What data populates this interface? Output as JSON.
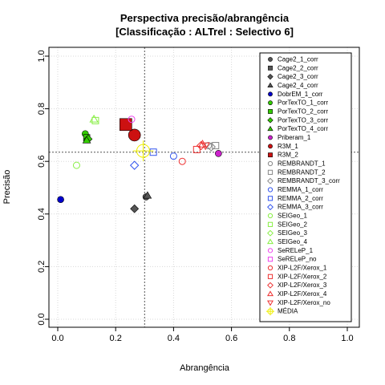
{
  "chart_data": {
    "type": "scatter",
    "title": [
      "Perspectiva precisão/abrangência",
      "[Classificação : ALTrel : Selectivo 6]"
    ],
    "xlabel": "Abrangência",
    "ylabel": "Precisão",
    "xlim": [
      0,
      1
    ],
    "ylim": [
      0,
      1
    ],
    "xticks": [
      "0.0",
      "0.2",
      "0.4",
      "0.6",
      "0.8",
      "1.0"
    ],
    "yticks": [
      "0.0",
      "0.2",
      "0.4",
      "0.6",
      "0.8",
      "1.0"
    ],
    "grid": true,
    "legend_position": "right",
    "reference_lines": {
      "x": 0.3,
      "y": 0.635
    },
    "series": [
      {
        "name": "Cage2_1_corr",
        "marker": "circle-filled",
        "color": "#555555",
        "points": [
          [
            0.305,
            0.465
          ]
        ]
      },
      {
        "name": "Cage2_2_corr",
        "marker": "square-filled",
        "color": "#555555",
        "points": []
      },
      {
        "name": "Cage2_3_corr",
        "marker": "diamond-filled",
        "color": "#555555",
        "points": [
          [
            0.265,
            0.42
          ]
        ]
      },
      {
        "name": "Cage2_4_corr",
        "marker": "triangle-filled",
        "color": "#555555",
        "points": [
          [
            0.31,
            0.47
          ]
        ]
      },
      {
        "name": "DobrEM_1_corr",
        "marker": "circle-filled",
        "color": "#0000cc",
        "points": [
          [
            0.01,
            0.455
          ]
        ]
      },
      {
        "name": "PorTexTO_1_corr",
        "marker": "circle-filled",
        "color": "#33cc00",
        "points": [
          [
            0.095,
            0.705
          ]
        ]
      },
      {
        "name": "PorTexTO_2_corr",
        "marker": "square-filled",
        "color": "#33cc00",
        "points": [
          [
            0.1,
            0.69
          ]
        ]
      },
      {
        "name": "PorTexTO_3_corr",
        "marker": "diamond-filled",
        "color": "#33cc00",
        "points": [
          [
            0.105,
            0.685
          ]
        ]
      },
      {
        "name": "PorTexTO_4_corr",
        "marker": "triangle-filled",
        "color": "#33cc00",
        "points": [
          [
            0.1,
            0.68
          ]
        ]
      },
      {
        "name": "Priberam_1",
        "marker": "circle-filled",
        "color": "#cc22cc",
        "points": [
          [
            0.555,
            0.63
          ]
        ]
      },
      {
        "name": "R3M_1",
        "marker": "circle-filled",
        "color": "#cc1111",
        "size": "large",
        "points": [
          [
            0.265,
            0.7
          ]
        ]
      },
      {
        "name": "R3M_2",
        "marker": "square-filled",
        "color": "#cc1111",
        "size": "large",
        "points": [
          [
            0.235,
            0.74
          ]
        ]
      },
      {
        "name": "REMBRANDT_1",
        "marker": "circle-open",
        "color": "#888888",
        "points": [
          [
            0.52,
            0.66
          ]
        ]
      },
      {
        "name": "REMBRANDT_2",
        "marker": "square-open",
        "color": "#888888",
        "points": [
          [
            0.545,
            0.66
          ]
        ]
      },
      {
        "name": "REMBRANDT_3_corr",
        "marker": "diamond-open",
        "color": "#888888",
        "points": [
          [
            0.53,
            0.655
          ]
        ]
      },
      {
        "name": "REMMA_1_corr",
        "marker": "circle-open",
        "color": "#3355ee",
        "points": [
          [
            0.4,
            0.62
          ]
        ]
      },
      {
        "name": "REMMA_2_corr",
        "marker": "square-open",
        "color": "#3355ee",
        "points": [
          [
            0.33,
            0.635
          ]
        ]
      },
      {
        "name": "REMMA_3_corr",
        "marker": "diamond-open",
        "color": "#3355ee",
        "points": [
          [
            0.265,
            0.585
          ]
        ]
      },
      {
        "name": "SEIGeo_1",
        "marker": "circle-open",
        "color": "#88ee44",
        "points": [
          [
            0.065,
            0.585
          ]
        ]
      },
      {
        "name": "SEIGeo_2",
        "marker": "square-open",
        "color": "#88ee44",
        "points": [
          [
            0.13,
            0.755
          ]
        ]
      },
      {
        "name": "SEIGeo_3",
        "marker": "diamond-open",
        "color": "#88ee44",
        "points": []
      },
      {
        "name": "SEIGeo_4",
        "marker": "triangle-open",
        "color": "#88ee44",
        "points": [
          [
            0.125,
            0.76
          ]
        ]
      },
      {
        "name": "SeRELeP_1",
        "marker": "circle-open",
        "color": "#ee44ee",
        "points": [
          [
            0.255,
            0.76
          ]
        ]
      },
      {
        "name": "SeRELeP_no",
        "marker": "square-open",
        "color": "#ee44ee",
        "points": []
      },
      {
        "name": "XIP-L2F/Xerox_1",
        "marker": "circle-open",
        "color": "#ee3333",
        "points": [
          [
            0.43,
            0.6
          ]
        ]
      },
      {
        "name": "XIP-L2F/Xerox_2",
        "marker": "square-open",
        "color": "#ee3333",
        "points": [
          [
            0.48,
            0.645
          ]
        ]
      },
      {
        "name": "XIP-L2F/Xerox_3",
        "marker": "diamond-open",
        "color": "#ee3333",
        "points": [
          [
            0.495,
            0.66
          ]
        ]
      },
      {
        "name": "XIP-L2F/Xerox_4",
        "marker": "triangle-open",
        "color": "#ee3333",
        "points": [
          [
            0.5,
            0.665
          ]
        ]
      },
      {
        "name": "XIP-L2F/Xerox_no",
        "marker": "triangle-down-open",
        "color": "#ee3333",
        "points": [
          [
            0.51,
            0.66
          ]
        ]
      },
      {
        "name": "MÉDIA",
        "marker": "crosshair-circle",
        "color": "#eeee00",
        "points": [
          [
            0.295,
            0.64
          ]
        ]
      }
    ]
  }
}
